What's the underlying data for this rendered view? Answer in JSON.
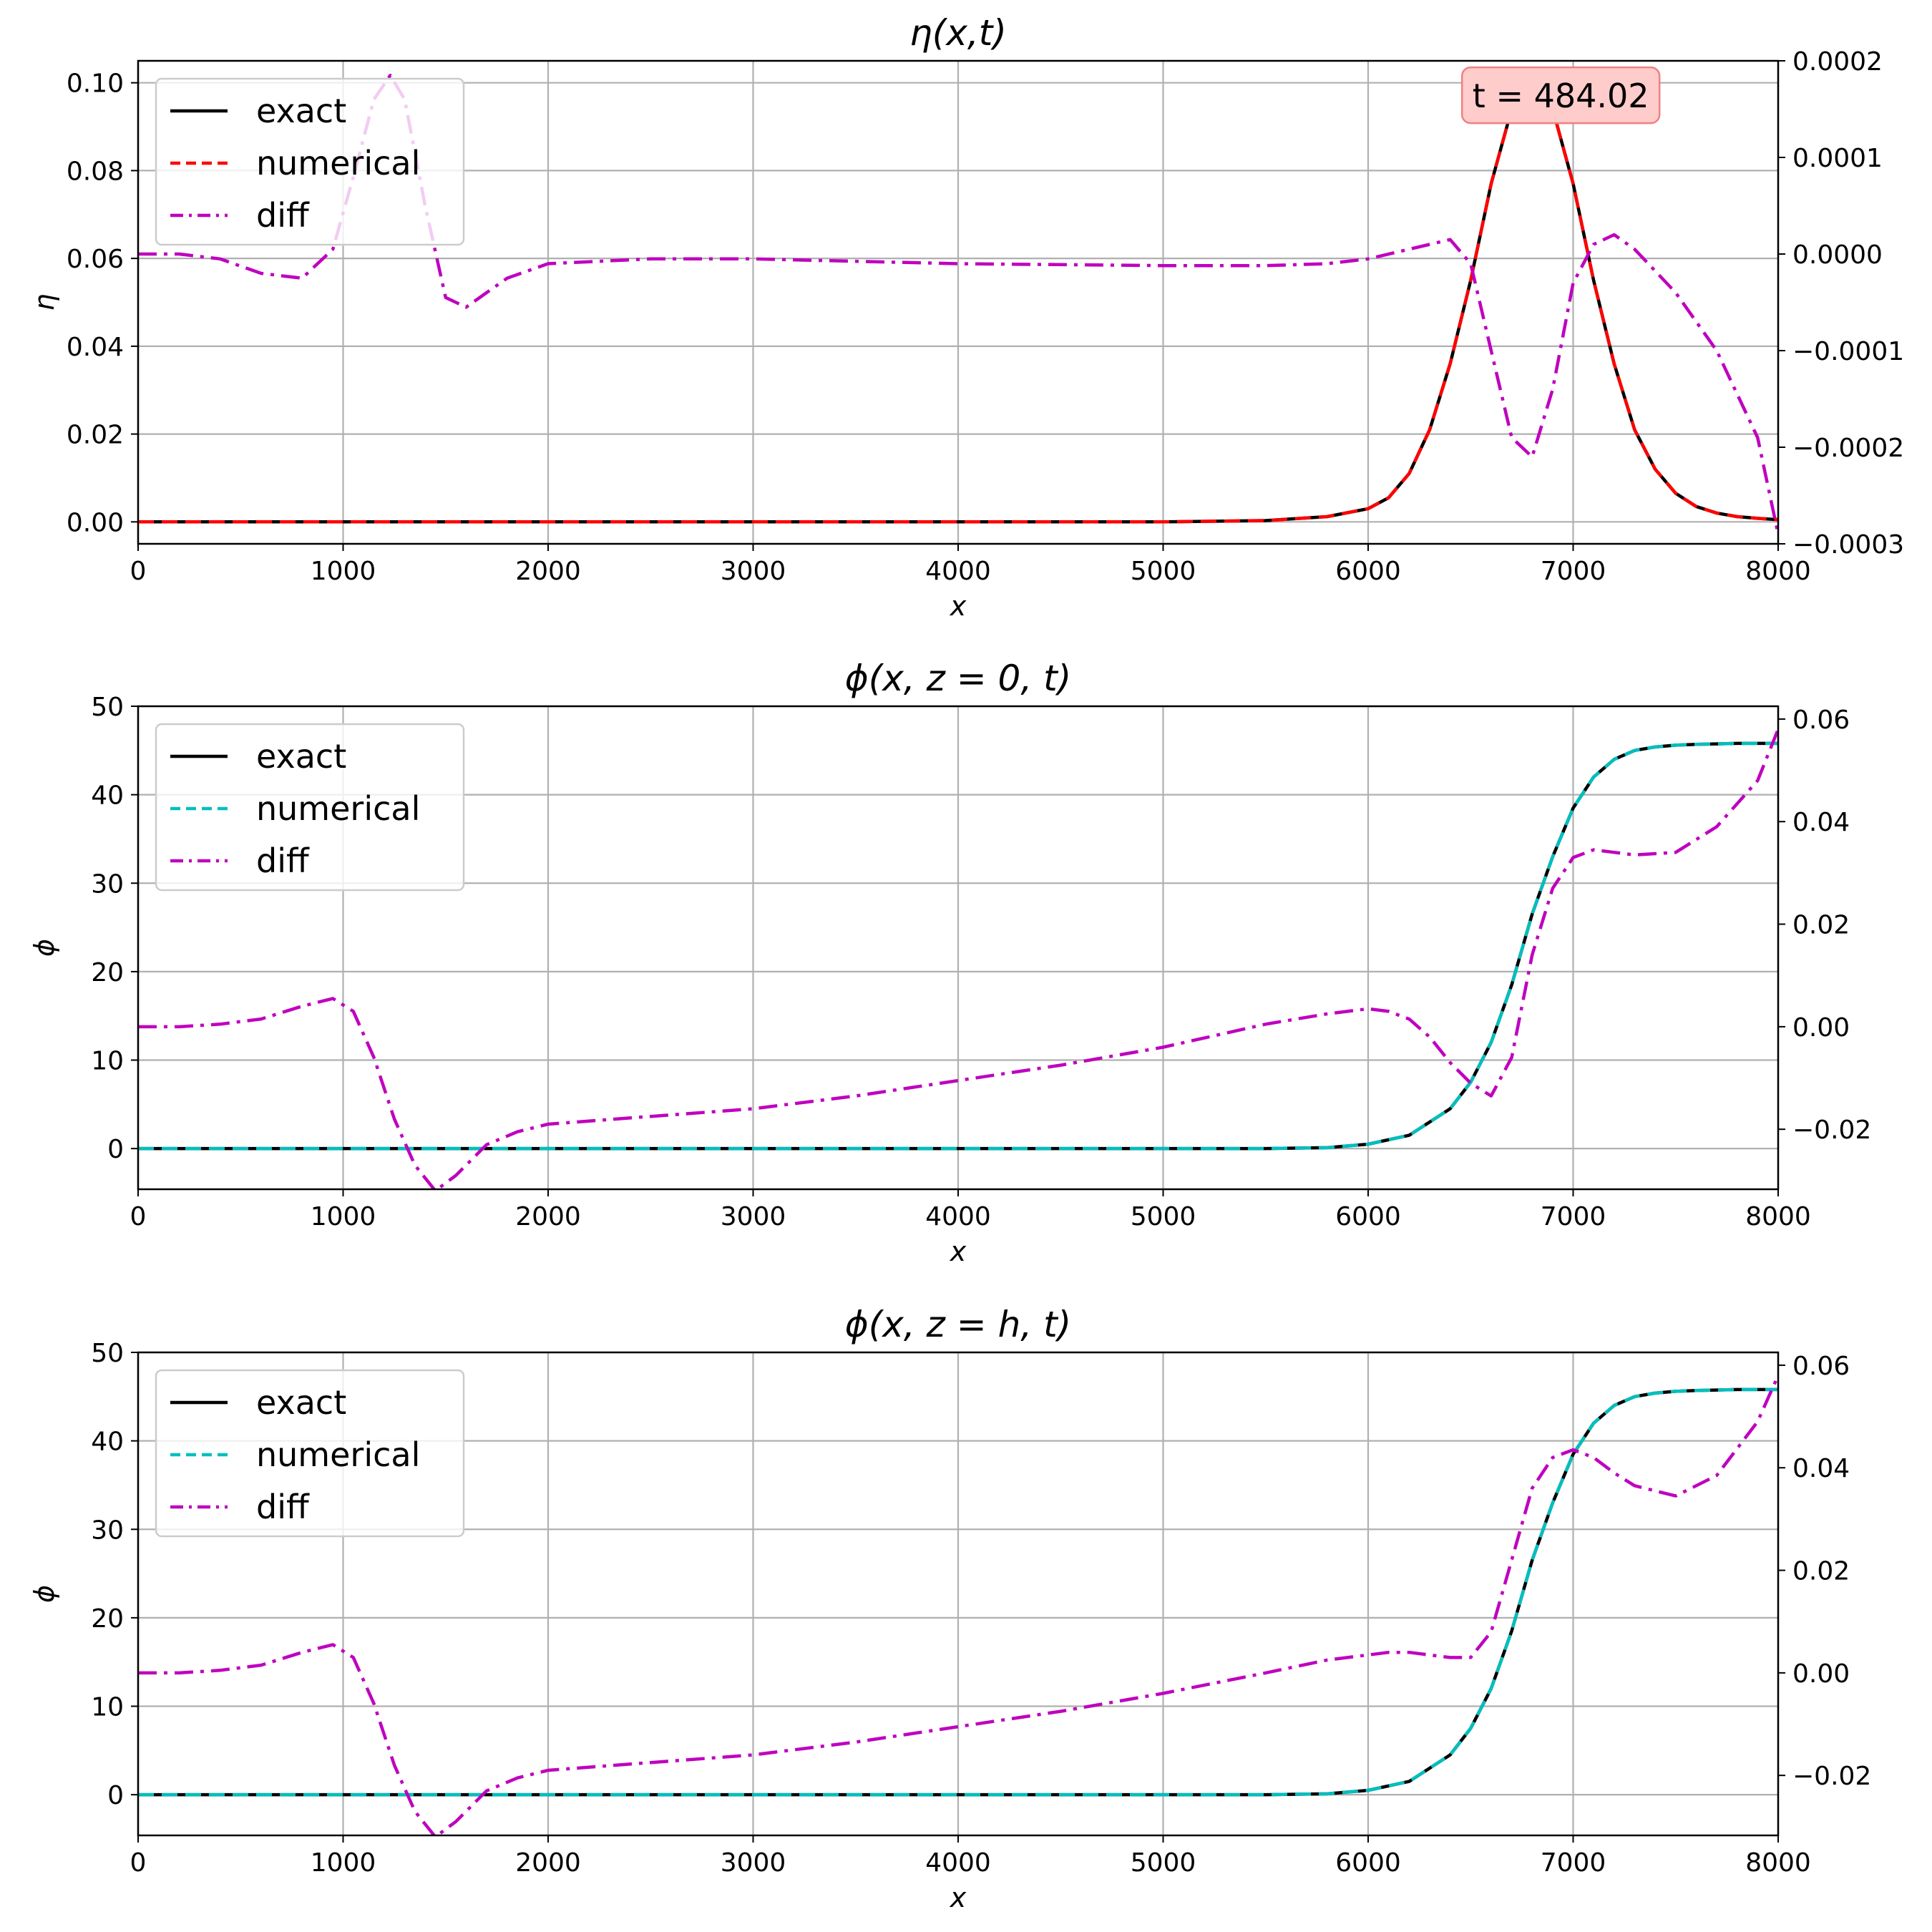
{
  "chart_data": [
    {
      "type": "line",
      "title": "η(x,t)",
      "xlabel": "x",
      "ylabel": "η",
      "xlim": [
        0,
        8000
      ],
      "ylim": [
        -0.005,
        0.105
      ],
      "y2lim": [
        -0.0003,
        0.0002
      ],
      "xticks": [
        "0",
        "1000",
        "2000",
        "3000",
        "4000",
        "5000",
        "6000",
        "7000",
        "8000"
      ],
      "yticks": [
        [
          "0.00",
          0
        ],
        [
          "0.02",
          0.02
        ],
        [
          "0.04",
          0.04
        ],
        [
          "0.06",
          0.06
        ],
        [
          "0.08",
          0.08
        ],
        [
          "0.10",
          0.1
        ]
      ],
      "y2ticks": [
        [
          "−0.0003",
          -0.0003
        ],
        [
          "−0.0002",
          -0.0002
        ],
        [
          "−0.0001",
          -0.0001
        ],
        [
          "0.0000",
          0
        ],
        [
          "0.0001",
          0.0001
        ],
        [
          "0.0002",
          0.0002
        ]
      ],
      "grid": true,
      "legend_position": "top-left",
      "annotation": {
        "text": "t = 484.02",
        "x": 6800,
        "y": 0.097
      },
      "series": [
        {
          "name": "exact",
          "color": "#000000",
          "style": "solid",
          "axis": "left",
          "x": [
            0,
            5000,
            5500,
            5800,
            6000,
            6100,
            6200,
            6300,
            6400,
            6500,
            6600,
            6700,
            6800,
            6900,
            7000,
            7100,
            7200,
            7300,
            7400,
            7500,
            7600,
            7700,
            7800,
            7900,
            8000
          ],
          "y": [
            0,
            0,
            0.0003,
            0.0012,
            0.003,
            0.0055,
            0.011,
            0.021,
            0.036,
            0.055,
            0.077,
            0.094,
            0.1,
            0.094,
            0.077,
            0.055,
            0.036,
            0.021,
            0.012,
            0.0065,
            0.0035,
            0.002,
            0.0012,
            0.0008,
            0.0005
          ]
        },
        {
          "name": "numerical",
          "color": "#ff0000",
          "style": "dashed",
          "axis": "left",
          "x": [
            0,
            5000,
            5500,
            5800,
            6000,
            6100,
            6200,
            6300,
            6400,
            6500,
            6600,
            6700,
            6800,
            6900,
            7000,
            7100,
            7200,
            7300,
            7400,
            7500,
            7600,
            7700,
            7800,
            7900,
            8000
          ],
          "y": [
            0,
            0,
            0.0003,
            0.0012,
            0.003,
            0.0055,
            0.011,
            0.021,
            0.036,
            0.055,
            0.077,
            0.094,
            0.1,
            0.094,
            0.077,
            0.055,
            0.036,
            0.021,
            0.012,
            0.0065,
            0.0035,
            0.002,
            0.0012,
            0.0008,
            0.0005
          ]
        },
        {
          "name": "diff",
          "color": "#bf00bf",
          "style": "dashdot",
          "axis": "right",
          "x": [
            0,
            200,
            400,
            600,
            800,
            950,
            1050,
            1150,
            1230,
            1300,
            1400,
            1500,
            1600,
            1700,
            1800,
            2000,
            2500,
            3000,
            4000,
            5000,
            5500,
            5800,
            6000,
            6200,
            6400,
            6500,
            6600,
            6700,
            6800,
            6900,
            7000,
            7100,
            7200,
            7300,
            7500,
            7700,
            7900,
            8000
          ],
          "y": [
            0.0,
            0.0,
            -5e-06,
            -2e-05,
            -2.5e-05,
            5e-06,
            8e-05,
            0.00016,
            0.000185,
            0.00016,
            5e-05,
            -4.5e-05,
            -5.5e-05,
            -4e-05,
            -2.5e-05,
            -1e-05,
            -5e-06,
            -5e-06,
            -1e-05,
            -1.2e-05,
            -1.2e-05,
            -1e-05,
            -5e-06,
            5e-06,
            1.5e-05,
            -1e-05,
            -0.0001,
            -0.00019,
            -0.00021,
            -0.00014,
            -3e-05,
            1e-05,
            2e-05,
            5e-06,
            -4e-05,
            -0.0001,
            -0.00019,
            -0.00029
          ]
        }
      ]
    },
    {
      "type": "line",
      "title": "ϕ(x, z = 0, t)",
      "xlabel": "x",
      "ylabel": "ϕ",
      "xlim": [
        0,
        8000
      ],
      "ylim": [
        -4.6,
        50
      ],
      "y2lim": [
        -0.0317,
        0.0625
      ],
      "xticks": [
        "0",
        "1000",
        "2000",
        "3000",
        "4000",
        "5000",
        "6000",
        "7000",
        "8000"
      ],
      "yticks": [
        [
          "0",
          0
        ],
        [
          "10",
          10
        ],
        [
          "20",
          20
        ],
        [
          "30",
          30
        ],
        [
          "40",
          40
        ],
        [
          "50",
          50
        ]
      ],
      "y2ticks": [
        [
          "−0.02",
          -0.02
        ],
        [
          "0.00",
          0
        ],
        [
          "0.02",
          0.02
        ],
        [
          "0.04",
          0.04
        ],
        [
          "0.06",
          0.06
        ]
      ],
      "grid": true,
      "legend_position": "top-left",
      "series": [
        {
          "name": "exact",
          "color": "#000000",
          "style": "solid",
          "axis": "left",
          "x": [
            0,
            5000,
            5500,
            5800,
            6000,
            6200,
            6400,
            6500,
            6600,
            6700,
            6800,
            6900,
            7000,
            7100,
            7200,
            7300,
            7400,
            7500,
            7600,
            7800,
            8000
          ],
          "y": [
            0,
            0,
            0,
            0.1,
            0.5,
            1.5,
            4.5,
            7.5,
            12,
            18.5,
            26.5,
            33,
            38.5,
            42,
            44,
            45,
            45.4,
            45.6,
            45.7,
            45.8,
            45.8
          ]
        },
        {
          "name": "numerical",
          "color": "#00bfbf",
          "style": "dashed",
          "axis": "left",
          "x": [
            0,
            5000,
            5500,
            5800,
            6000,
            6200,
            6400,
            6500,
            6600,
            6700,
            6800,
            6900,
            7000,
            7100,
            7200,
            7300,
            7400,
            7500,
            7600,
            7800,
            8000
          ],
          "y": [
            0,
            0,
            0,
            0.1,
            0.5,
            1.5,
            4.5,
            7.5,
            12,
            18.5,
            26.5,
            33,
            38.5,
            42,
            44,
            45,
            45.4,
            45.6,
            45.7,
            45.8,
            45.8
          ]
        },
        {
          "name": "diff",
          "color": "#bf00bf",
          "style": "dashdot",
          "axis": "right",
          "x": [
            0,
            200,
            400,
            600,
            800,
            950,
            1050,
            1150,
            1250,
            1350,
            1450,
            1550,
            1700,
            1850,
            2000,
            2500,
            3000,
            3500,
            4000,
            4500,
            5000,
            5500,
            5800,
            6000,
            6100,
            6200,
            6300,
            6400,
            6500,
            6600,
            6700,
            6800,
            6900,
            7000,
            7100,
            7200,
            7300,
            7500,
            7700,
            7900,
            8000
          ],
          "y": [
            0,
            0,
            0.0005,
            0.0015,
            0.004,
            0.0055,
            0.003,
            -0.006,
            -0.018,
            -0.027,
            -0.032,
            -0.029,
            -0.023,
            -0.0205,
            -0.019,
            -0.0175,
            -0.016,
            -0.0135,
            -0.0105,
            -0.0075,
            -0.004,
            0.0005,
            0.0025,
            0.0035,
            0.003,
            0.0015,
            -0.002,
            -0.007,
            -0.011,
            -0.0135,
            -0.006,
            0.014,
            0.027,
            0.033,
            0.0345,
            0.034,
            0.0335,
            0.034,
            0.039,
            0.048,
            0.058
          ]
        }
      ]
    },
    {
      "type": "line",
      "title": "ϕ(x, z = h, t)",
      "xlabel": "x",
      "ylabel": "ϕ",
      "xlim": [
        0,
        8000
      ],
      "ylim": [
        -4.6,
        50
      ],
      "y2lim": [
        -0.0317,
        0.0625
      ],
      "xticks": [
        "0",
        "1000",
        "2000",
        "3000",
        "4000",
        "5000",
        "6000",
        "7000",
        "8000"
      ],
      "yticks": [
        [
          "0",
          0
        ],
        [
          "10",
          10
        ],
        [
          "20",
          20
        ],
        [
          "30",
          30
        ],
        [
          "40",
          40
        ],
        [
          "50",
          50
        ]
      ],
      "y2ticks": [
        [
          "−0.02",
          -0.02
        ],
        [
          "0.00",
          0
        ],
        [
          "0.02",
          0.02
        ],
        [
          "0.04",
          0.04
        ],
        [
          "0.06",
          0.06
        ]
      ],
      "grid": true,
      "legend_position": "top-left",
      "series": [
        {
          "name": "exact",
          "color": "#000000",
          "style": "solid",
          "axis": "left",
          "x": [
            0,
            5000,
            5500,
            5800,
            6000,
            6200,
            6400,
            6500,
            6600,
            6700,
            6800,
            6900,
            7000,
            7100,
            7200,
            7300,
            7400,
            7500,
            7600,
            7800,
            8000
          ],
          "y": [
            0,
            0,
            0,
            0.1,
            0.5,
            1.5,
            4.5,
            7.5,
            12,
            18.5,
            26.5,
            33,
            38.5,
            42,
            44,
            45,
            45.4,
            45.6,
            45.7,
            45.8,
            45.8
          ]
        },
        {
          "name": "numerical",
          "color": "#00bfbf",
          "style": "dashed",
          "axis": "left",
          "x": [
            0,
            5000,
            5500,
            5800,
            6000,
            6200,
            6400,
            6500,
            6600,
            6700,
            6800,
            6900,
            7000,
            7100,
            7200,
            7300,
            7400,
            7500,
            7600,
            7800,
            8000
          ],
          "y": [
            0,
            0,
            0,
            0.1,
            0.5,
            1.5,
            4.5,
            7.5,
            12,
            18.5,
            26.5,
            33,
            38.5,
            42,
            44,
            45,
            45.4,
            45.6,
            45.7,
            45.8,
            45.8
          ]
        },
        {
          "name": "diff",
          "color": "#bf00bf",
          "style": "dashdot",
          "axis": "right",
          "x": [
            0,
            200,
            400,
            600,
            800,
            950,
            1050,
            1150,
            1250,
            1350,
            1450,
            1550,
            1700,
            1850,
            2000,
            2500,
            3000,
            3500,
            4000,
            4500,
            5000,
            5500,
            5800,
            6000,
            6100,
            6200,
            6300,
            6400,
            6500,
            6600,
            6700,
            6800,
            6900,
            7000,
            7100,
            7200,
            7300,
            7500,
            7700,
            7900,
            8000
          ],
          "y": [
            0,
            0,
            0.0005,
            0.0015,
            0.004,
            0.0055,
            0.003,
            -0.006,
            -0.018,
            -0.027,
            -0.032,
            -0.029,
            -0.023,
            -0.0205,
            -0.019,
            -0.0175,
            -0.016,
            -0.0135,
            -0.0105,
            -0.0075,
            -0.004,
            0.0,
            0.0025,
            0.0035,
            0.004,
            0.004,
            0.0035,
            0.003,
            0.003,
            0.008,
            0.022,
            0.036,
            0.042,
            0.0435,
            0.042,
            0.039,
            0.0365,
            0.0345,
            0.0385,
            0.049,
            0.058
          ]
        }
      ]
    }
  ]
}
